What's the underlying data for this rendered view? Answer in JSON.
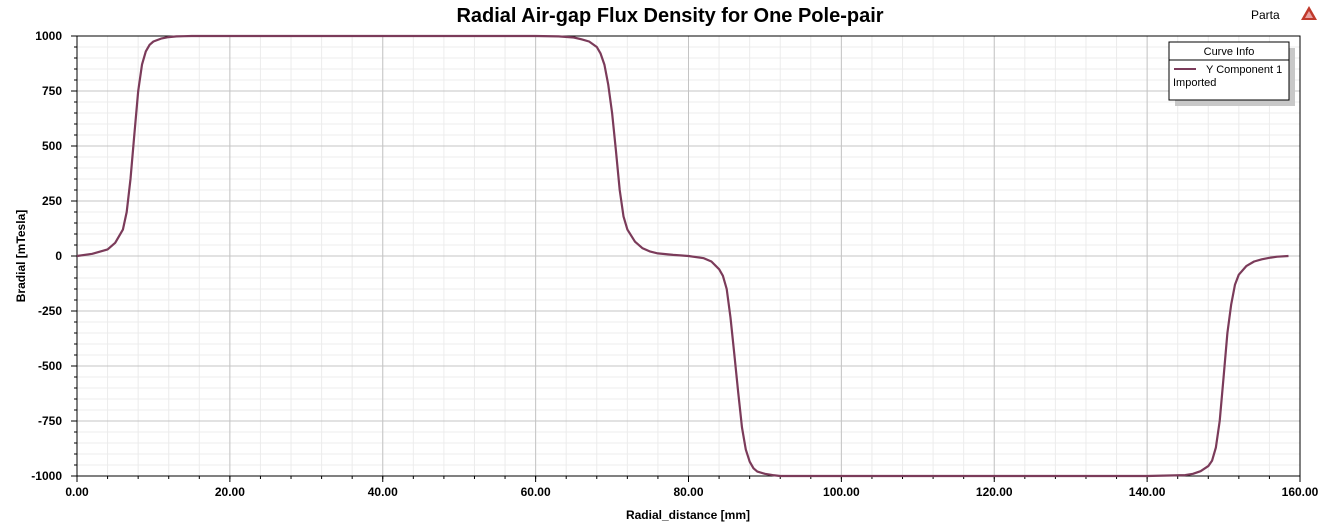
{
  "app": {
    "name": "Parta",
    "logo_icon": "ansys-maxwell-logo-icon",
    "logo_color": "#c0392b"
  },
  "chart_data": {
    "type": "line",
    "title": "Radial Air-gap Flux Density for One Pole-pair",
    "xlabel": "Radial_distance [mm]",
    "ylabel": "Bradial [mTesla]",
    "xlim": [
      0,
      160
    ],
    "ylim": [
      -1000,
      1000
    ],
    "x_ticks": [
      0,
      20,
      40,
      60,
      80,
      100,
      120,
      140,
      160
    ],
    "x_tick_labels": [
      "0.00",
      "20.00",
      "40.00",
      "60.00",
      "80.00",
      "100.00",
      "120.00",
      "140.00",
      "160.00"
    ],
    "y_ticks": [
      1000,
      750,
      500,
      250,
      0,
      -250,
      -500,
      -750,
      -1000
    ],
    "y_tick_labels": [
      "1000",
      "750",
      "500",
      "250",
      "0",
      "-250",
      "-500",
      "-750",
      "-1000"
    ],
    "grid": true,
    "legend": {
      "title": "Curve Info",
      "placement": "top-right"
    },
    "series": [
      {
        "name": "Y Component 1",
        "subtitle": "Imported",
        "color": "#7b3b5a",
        "x": [
          0,
          2,
          4,
          5,
          6,
          6.5,
          7,
          7.5,
          8,
          8.5,
          9,
          9.5,
          10,
          11,
          12,
          13,
          14,
          15,
          20,
          40,
          60,
          63,
          65,
          66,
          67,
          68,
          68.5,
          69,
          69.5,
          70,
          70.5,
          71,
          71.5,
          72,
          73,
          74,
          75,
          76,
          78,
          80,
          82,
          83,
          84,
          84.5,
          85,
          85.5,
          86,
          86.5,
          87,
          87.5,
          88,
          88.5,
          89,
          90,
          91,
          92,
          95,
          100,
          120,
          140,
          145,
          146,
          147,
          148,
          148.5,
          149,
          149.5,
          150,
          150.5,
          151,
          151.5,
          152,
          153,
          154,
          155,
          156,
          157,
          158.5
        ],
        "y": [
          0,
          10,
          30,
          60,
          120,
          200,
          350,
          550,
          750,
          870,
          930,
          960,
          975,
          988,
          995,
          998,
          999,
          1000,
          1000,
          1000,
          1000,
          998,
          993,
          985,
          975,
          950,
          920,
          870,
          780,
          650,
          480,
          300,
          180,
          120,
          65,
          35,
          20,
          12,
          5,
          0,
          -10,
          -25,
          -60,
          -90,
          -150,
          -280,
          -450,
          -620,
          -780,
          -880,
          -935,
          -965,
          -980,
          -990,
          -996,
          -1000,
          -1000,
          -1000,
          -1000,
          -1000,
          -996,
          -990,
          -978,
          -955,
          -930,
          -870,
          -750,
          -550,
          -350,
          -220,
          -130,
          -85,
          -45,
          -25,
          -15,
          -8,
          -3,
          0
        ]
      }
    ]
  }
}
